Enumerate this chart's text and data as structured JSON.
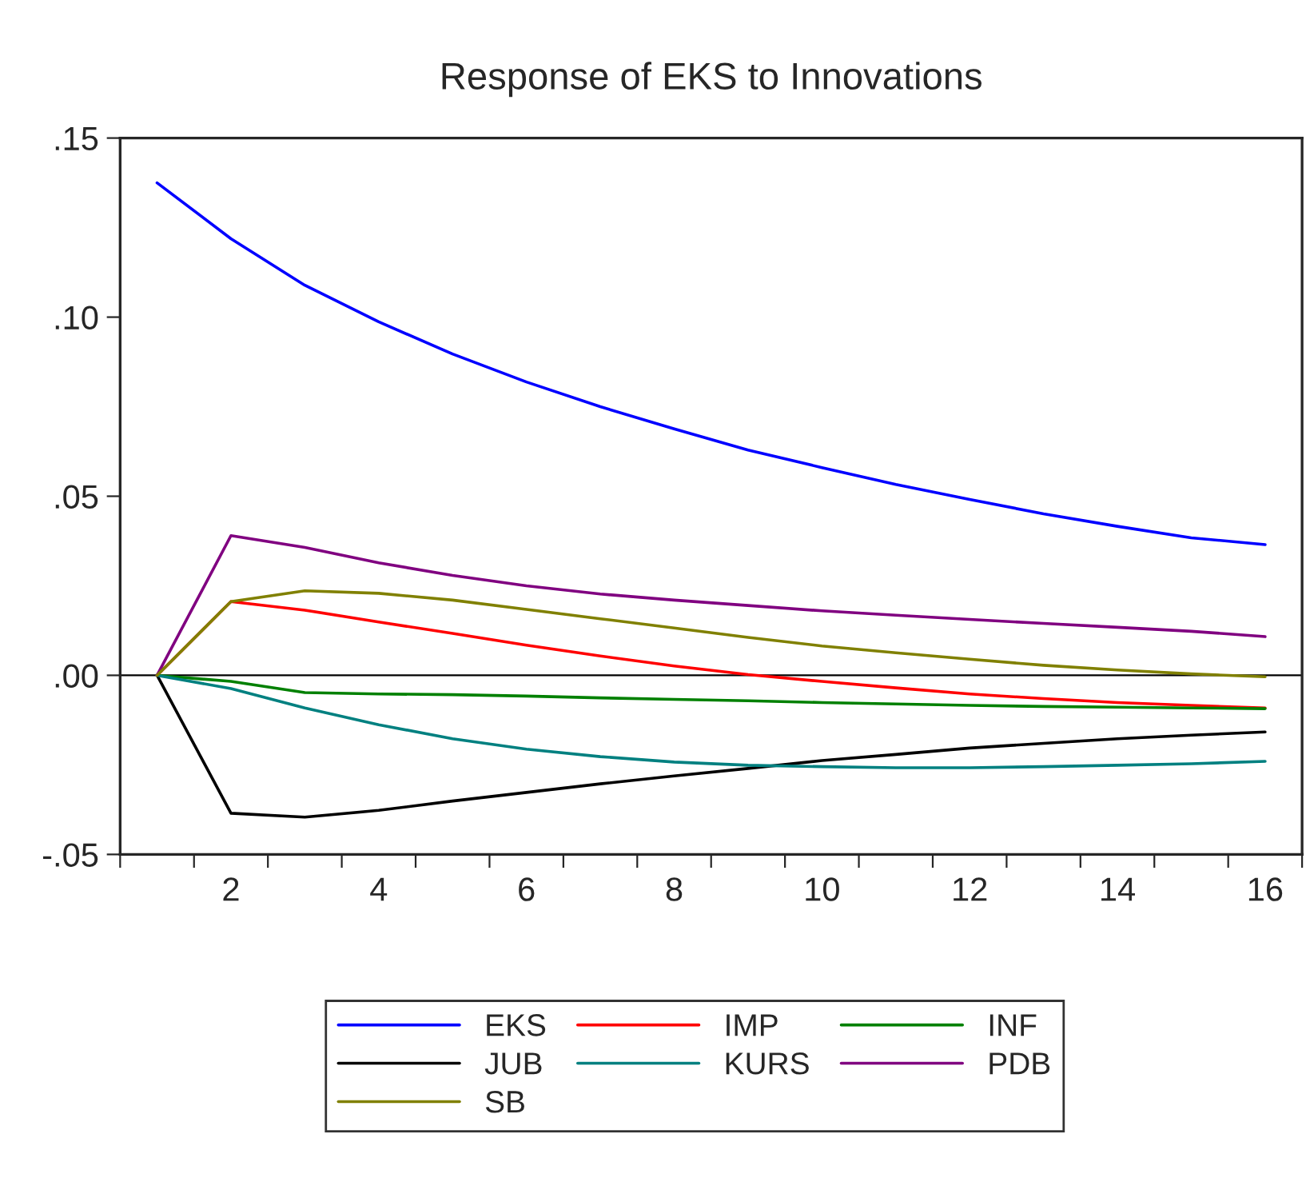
{
  "chart_data": {
    "type": "line",
    "title": "Response of EKS to Innovations",
    "x": [
      1,
      2,
      3,
      4,
      5,
      6,
      7,
      8,
      9,
      10,
      11,
      12,
      13,
      14,
      15,
      16
    ],
    "series": [
      {
        "name": "EKS",
        "color": "#0000ff",
        "values": [
          0.1375,
          0.1219,
          0.1089,
          0.0987,
          0.0897,
          0.0819,
          0.075,
          0.0688,
          0.0629,
          0.058,
          0.0533,
          0.0491,
          0.0451,
          0.0416,
          0.0384,
          0.0365
        ]
      },
      {
        "name": "IMP",
        "color": "#ff0000",
        "values": [
          0,
          0.0206,
          0.0182,
          0.0149,
          0.0117,
          0.0084,
          0.0054,
          0.0026,
          0.0002,
          -0.0017,
          -0.0035,
          -0.0052,
          -0.0065,
          -0.0076,
          -0.0084,
          -0.0091
        ]
      },
      {
        "name": "INF",
        "color": "#008000",
        "values": [
          0,
          -0.0017,
          -0.0048,
          -0.0052,
          -0.0054,
          -0.0058,
          -0.0063,
          -0.0067,
          -0.0071,
          -0.0076,
          -0.008,
          -0.0084,
          -0.0087,
          -0.0089,
          -0.0091,
          -0.0093
        ]
      },
      {
        "name": "JUB",
        "color": "#000000",
        "values": [
          0,
          -0.0385,
          -0.0396,
          -0.0377,
          -0.0351,
          -0.0327,
          -0.0303,
          -0.0281,
          -0.026,
          -0.0238,
          -0.0221,
          -0.0203,
          -0.019,
          -0.0177,
          -0.0167,
          -0.0158
        ]
      },
      {
        "name": "KURS",
        "color": "#008080",
        "values": [
          0,
          -0.0037,
          -0.0091,
          -0.0138,
          -0.0177,
          -0.0206,
          -0.0227,
          -0.0242,
          -0.0251,
          -0.0255,
          -0.0258,
          -0.0258,
          -0.0255,
          -0.0251,
          -0.0247,
          -0.024
        ]
      },
      {
        "name": "PDB",
        "color": "#800080",
        "values": [
          0,
          0.039,
          0.0357,
          0.0314,
          0.0279,
          0.025,
          0.0227,
          0.021,
          0.0195,
          0.018,
          0.0168,
          0.0156,
          0.0145,
          0.0134,
          0.0123,
          0.0108
        ]
      },
      {
        "name": "SB",
        "color": "#808000",
        "values": [
          0,
          0.0206,
          0.0236,
          0.0229,
          0.021,
          0.0184,
          0.0158,
          0.0132,
          0.0106,
          0.0082,
          0.0063,
          0.0045,
          0.0028,
          0.0015,
          0.0004,
          -0.0004
        ]
      }
    ],
    "xlim": [
      0.5,
      16.5
    ],
    "xticks": [
      {
        "value": 0.5,
        "label": null
      },
      {
        "value": 1.5,
        "label": null
      },
      {
        "value": 2,
        "label": "2"
      },
      {
        "value": 2.5,
        "label": null
      },
      {
        "value": 3.5,
        "label": null
      },
      {
        "value": 4,
        "label": "4"
      },
      {
        "value": 4.5,
        "label": null
      },
      {
        "value": 5.5,
        "label": null
      },
      {
        "value": 6,
        "label": "6"
      },
      {
        "value": 6.5,
        "label": null
      },
      {
        "value": 7.5,
        "label": null
      },
      {
        "value": 8,
        "label": "8"
      },
      {
        "value": 8.5,
        "label": null
      },
      {
        "value": 9.5,
        "label": null
      },
      {
        "value": 10,
        "label": "10"
      },
      {
        "value": 10.5,
        "label": null
      },
      {
        "value": 11.5,
        "label": null
      },
      {
        "value": 12,
        "label": "12"
      },
      {
        "value": 12.5,
        "label": null
      },
      {
        "value": 13.5,
        "label": null
      },
      {
        "value": 14,
        "label": "14"
      },
      {
        "value": 14.5,
        "label": null
      },
      {
        "value": 15.5,
        "label": null
      },
      {
        "value": 16,
        "label": "16"
      },
      {
        "value": 16.5,
        "label": null
      }
    ],
    "ylim": [
      -0.05,
      0.15
    ],
    "yticks": [
      {
        "value": -0.05,
        "label": "-.05"
      },
      {
        "value": 0,
        "label": ".00"
      },
      {
        "value": 0.05,
        "label": ".05"
      },
      {
        "value": 0.1,
        "label": ".10"
      },
      {
        "value": 0.15,
        "label": ".15"
      }
    ],
    "ref_lines": [
      {
        "axis": "y",
        "value": 0,
        "color": "#000000"
      }
    ],
    "grid": false,
    "legend": "bottom",
    "marker": "none",
    "line_style": "solid"
  }
}
